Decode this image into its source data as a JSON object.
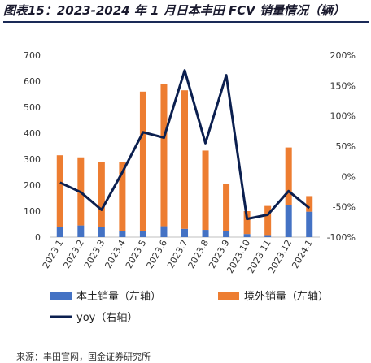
{
  "title": "图表15：2023-2024 年 1 月日本丰田 FCV 销量情况（辆）",
  "source": "来源：丰田官网，国金证券研究所",
  "chart_data": {
    "type": "bar+line",
    "categories": [
      "2023.1",
      "2023.2",
      "2023.3",
      "2023.4",
      "2023.5",
      "2023.6",
      "2023.7",
      "2023.8",
      "2023.9",
      "2023.10",
      "2023.11",
      "2023.12",
      "2024.1"
    ],
    "series": [
      {
        "name": "本土销量（左轴）",
        "type": "bar",
        "axis": "left",
        "color": "#4472C4",
        "values": [
          38,
          45,
          38,
          22,
          22,
          42,
          32,
          28,
          22,
          12,
          8,
          125,
          98
        ]
      },
      {
        "name": "境外销量（左轴）",
        "type": "bar",
        "axis": "left",
        "color": "#ED7D31",
        "values": [
          277,
          262,
          252,
          266,
          538,
          548,
          533,
          305,
          183,
          88,
          112,
          220,
          60
        ]
      },
      {
        "name": "yoy（右轴）",
        "type": "line",
        "axis": "right",
        "color": "#0B1F4F",
        "values": [
          -10,
          -26,
          -55,
          7,
          73,
          64,
          175,
          55,
          167,
          -70,
          -63,
          -24,
          -52
        ]
      }
    ],
    "left_axis": {
      "ylim": [
        0,
        700
      ],
      "ticks": [
        "0",
        "100",
        "200",
        "300",
        "400",
        "500",
        "600",
        "700"
      ]
    },
    "right_axis": {
      "ylim": [
        -100,
        200
      ],
      "ticks": [
        "-100%",
        "-50%",
        "0%",
        "50%",
        "100%",
        "150%",
        "200%"
      ]
    },
    "stacked": true,
    "legend": "bottom",
    "grid": false
  }
}
